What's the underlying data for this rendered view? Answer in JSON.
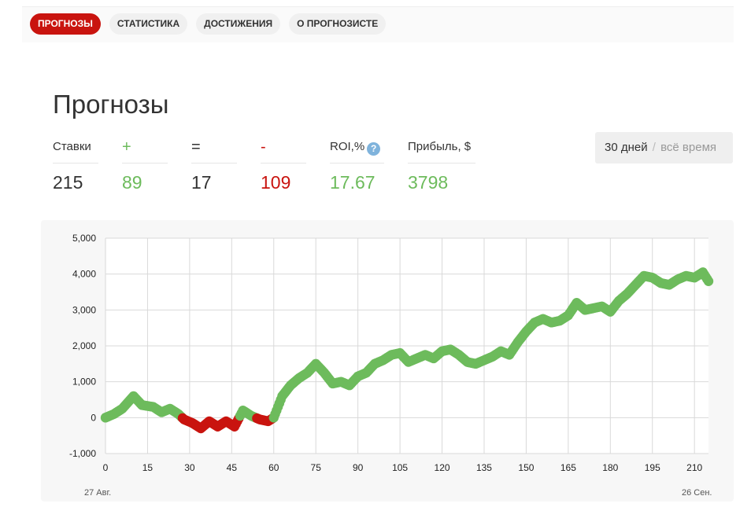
{
  "nav": {
    "tabs": [
      {
        "label": "ПРОГНОЗЫ",
        "active": true
      },
      {
        "label": "СТАТИСТИКА",
        "active": false
      },
      {
        "label": "ДОСТИЖЕНИЯ",
        "active": false
      },
      {
        "label": "О ПРОГНОЗИСТЕ",
        "active": false
      }
    ]
  },
  "page_title": "Прогнозы",
  "stats": {
    "bets": {
      "label": "Ставки",
      "value": "215"
    },
    "wins": {
      "label": "+",
      "value": "89"
    },
    "draws": {
      "label": "=",
      "value": "17"
    },
    "losses": {
      "label": "-",
      "value": "109"
    },
    "roi": {
      "label": "ROI,%",
      "value": "17.67",
      "help": "?"
    },
    "profit": {
      "label": "Прибыль, $",
      "value": "3798"
    }
  },
  "period": {
    "option_1": "30 дней",
    "separator": "/",
    "option_2": "всё время",
    "selected": "30 дней"
  },
  "colors": {
    "accent": "#c9140f",
    "positive": "#6dbb5c",
    "negative": "#c9140f",
    "help": "#7fb3dc"
  },
  "chart_data": {
    "type": "line",
    "x_ticks": [
      "0",
      "15",
      "30",
      "45",
      "60",
      "75",
      "90",
      "105",
      "120",
      "135",
      "150",
      "165",
      "180",
      "195",
      "210"
    ],
    "y_ticks": [
      "5,000",
      "4,000",
      "3,000",
      "2,000",
      "1,000",
      "0",
      "-1,000"
    ],
    "xlim": [
      0,
      215
    ],
    "ylim": [
      -1000,
      5000
    ],
    "date_start": "27 Авг.",
    "date_end": "26 Сен.",
    "grid": true,
    "marker_colors": {
      "positive": "#6dbb5c",
      "negative": "#c9140f"
    },
    "keypoints_x": [
      0,
      3,
      6,
      10,
      13,
      17,
      20,
      23,
      26,
      28,
      31,
      34,
      37,
      40,
      43,
      46,
      49,
      52,
      55,
      58,
      60,
      63,
      66,
      69,
      72,
      75,
      78,
      81,
      84,
      87,
      90,
      93,
      96,
      99,
      102,
      105,
      108,
      111,
      114,
      117,
      120,
      123,
      126,
      129,
      132,
      135,
      138,
      141,
      144,
      147,
      150,
      153,
      156,
      159,
      162,
      165,
      168,
      171,
      174,
      177,
      180,
      183,
      186,
      189,
      192,
      195,
      198,
      201,
      204,
      207,
      210,
      213,
      215
    ],
    "keypoints_y": [
      0,
      100,
      250,
      600,
      350,
      300,
      150,
      250,
      100,
      -50,
      -150,
      -300,
      -100,
      -250,
      -100,
      -250,
      200,
      50,
      -50,
      -100,
      0,
      600,
      900,
      1100,
      1250,
      1500,
      1250,
      950,
      1000,
      900,
      1150,
      1250,
      1500,
      1600,
      1750,
      1800,
      1550,
      1650,
      1750,
      1650,
      1850,
      1900,
      1750,
      1550,
      1500,
      1600,
      1700,
      1850,
      1750,
      2100,
      2400,
      2650,
      2750,
      2650,
      2700,
      2850,
      3200,
      3000,
      3050,
      3100,
      2950,
      3250,
      3450,
      3700,
      3950,
      3900,
      3750,
      3700,
      3850,
      3950,
      3900,
      4050,
      3800
    ]
  }
}
